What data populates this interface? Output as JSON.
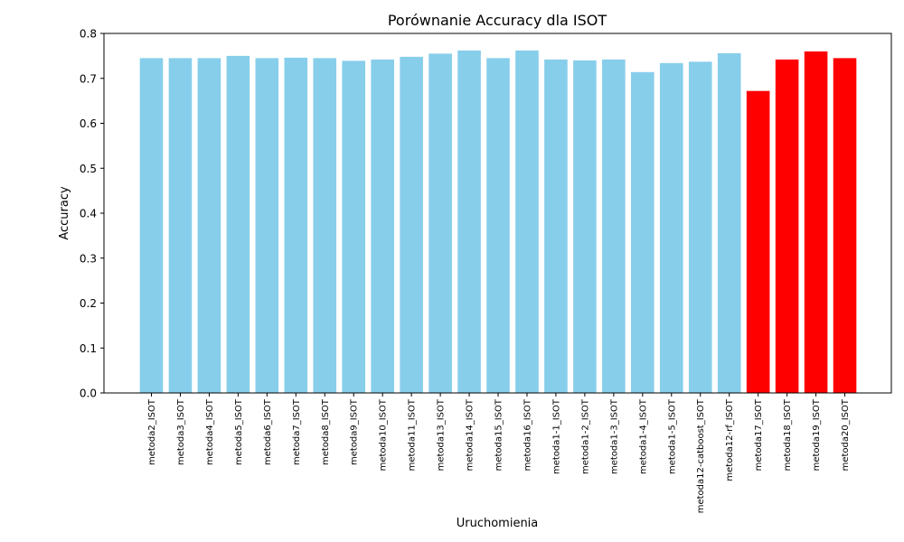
{
  "chart_data": {
    "type": "bar",
    "title": "Porównanie Accuracy dla ISOT",
    "xlabel": "Uruchomienia",
    "ylabel": "Accuracy",
    "ylim": [
      0,
      0.8
    ],
    "yticks": [
      "0.0",
      "0.1",
      "0.2",
      "0.3",
      "0.4",
      "0.5",
      "0.6",
      "0.7",
      "0.8"
    ],
    "grid": false,
    "colors": {
      "default": "#87CEEB",
      "highlight": "#FF0000"
    },
    "categories": [
      "metoda2_ISOT",
      "metoda3_ISOT",
      "metoda4_ISOT",
      "metoda5_ISOT",
      "metoda6_ISOT",
      "metoda7_ISOT",
      "metoda8_ISOT",
      "metoda9_ISOT",
      "metoda10_ISOT",
      "metoda11_ISOT",
      "metoda13_ISOT",
      "metoda14_ISOT",
      "metoda15_ISOT",
      "metoda16_ISOT",
      "metoda1-1_ISOT",
      "metoda1-2_ISOT",
      "metoda1-3_ISOT",
      "metoda1-4_ISOT",
      "metoda1-5_ISOT",
      "metoda12-catboost_ISOT",
      "metoda12-rf_ISOT",
      "metoda17_ISOT",
      "metoda18_ISOT",
      "metoda19_ISOT",
      "metoda20_ISOT"
    ],
    "values": [
      0.745,
      0.745,
      0.745,
      0.75,
      0.745,
      0.746,
      0.745,
      0.739,
      0.742,
      0.748,
      0.755,
      0.762,
      0.745,
      0.762,
      0.742,
      0.74,
      0.742,
      0.714,
      0.734,
      0.737,
      0.756,
      0.672,
      0.742,
      0.76,
      0.745
    ],
    "highlighted": [
      false,
      false,
      false,
      false,
      false,
      false,
      false,
      false,
      false,
      false,
      false,
      false,
      false,
      false,
      false,
      false,
      false,
      false,
      false,
      false,
      false,
      true,
      true,
      true,
      true
    ]
  }
}
